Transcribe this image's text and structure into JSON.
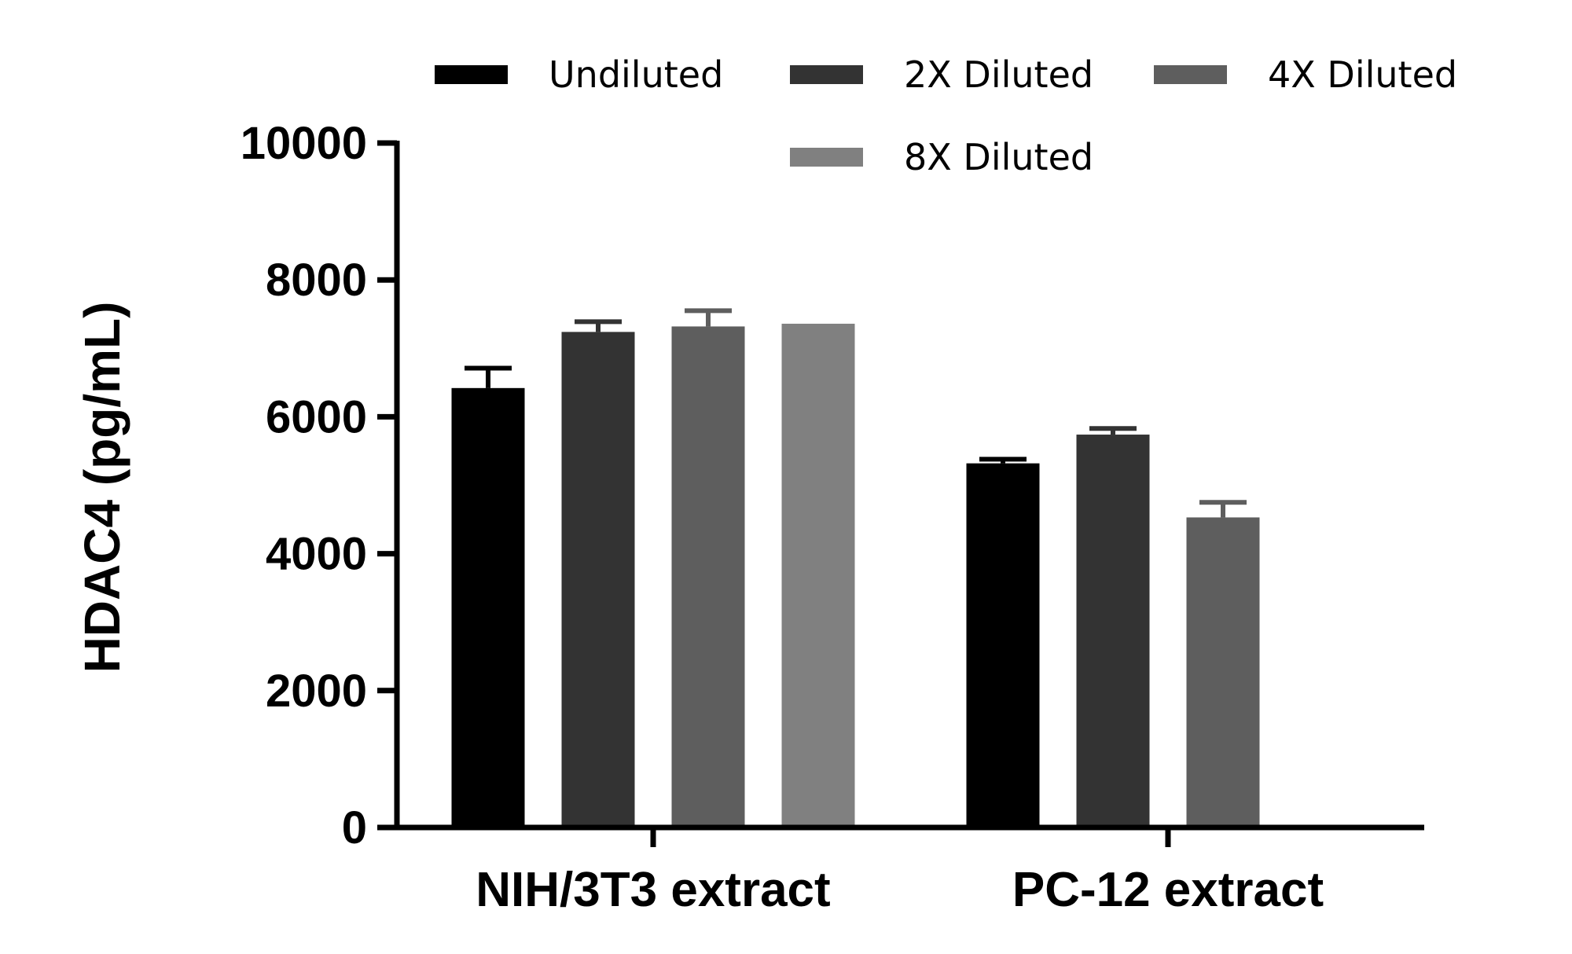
{
  "chart_data": {
    "type": "bar",
    "ylabel": "HDAC4 (pg/mL)",
    "xlabel": "",
    "ylim": [
      0,
      10000
    ],
    "yticks": [
      "0",
      "2000",
      "4000",
      "6000",
      "8000",
      "10000"
    ],
    "categories": [
      "NIH/3T3 extract",
      "PC-12 extract"
    ],
    "series": [
      {
        "name": "Undiluted",
        "color": "#000000",
        "values": [
          6420,
          5320
        ],
        "errors": [
          290,
          60
        ]
      },
      {
        "name": "2X Diluted",
        "color": "#333333",
        "values": [
          7240,
          5740
        ],
        "errors": [
          150,
          90
        ]
      },
      {
        "name": "4X Diluted",
        "color": "#5e5e5e",
        "values": [
          7320,
          4530
        ],
        "errors": [
          230,
          220
        ]
      },
      {
        "name": "8X Diluted",
        "color": "#808080",
        "values": [
          7360,
          null
        ],
        "errors": [
          0,
          null
        ]
      }
    ],
    "legend": {
      "position": "top",
      "columns": 3
    },
    "grid": false
  }
}
